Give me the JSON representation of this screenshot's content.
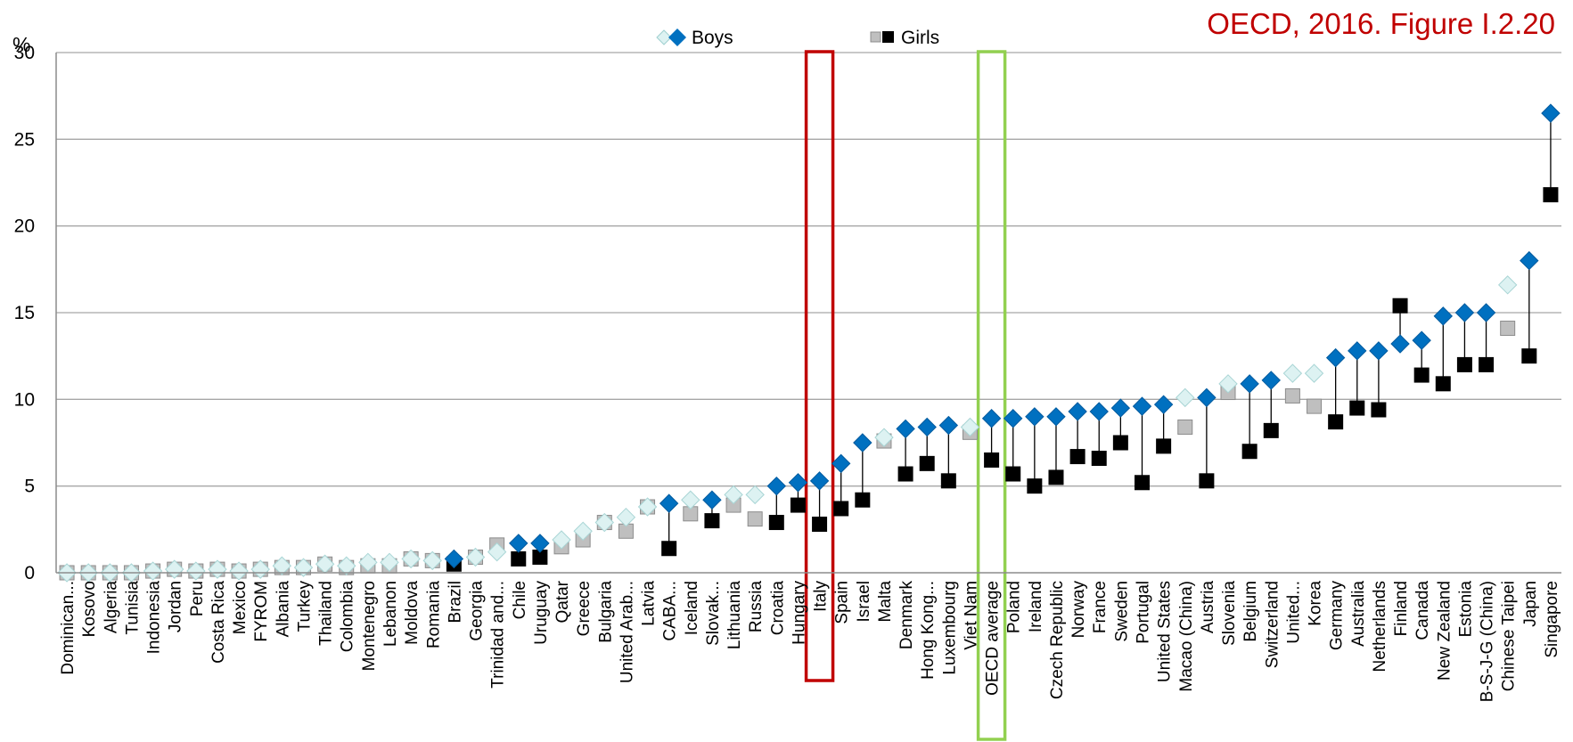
{
  "source_note": "OECD, 2016. Figure I.2.20",
  "colors": {
    "boys_significant": "#0070C0",
    "boys_not_significant": "#DDF2F2",
    "girls_significant": "#000000",
    "girls_not_significant": "#BFBFBF",
    "grid": "#A6A6A6",
    "highlight_italy": "#C00000",
    "highlight_oecd": "#92D050",
    "source_text": "#C00000"
  },
  "chart_data": {
    "type": "dot-range",
    "ylabel": "%",
    "ylim": [
      0,
      30
    ],
    "yticks": [
      0,
      5,
      10,
      15,
      20,
      25,
      30
    ],
    "grid": true,
    "legend": {
      "placement": "top-center",
      "entries": [
        "Boys",
        "Girls"
      ]
    },
    "highlighted_categories": [
      "Italy",
      "OECD average"
    ],
    "categories": [
      "Dominican...",
      "Kosovo",
      "Algeria",
      "Tunisia",
      "Indonesia",
      "Jordan",
      "Peru",
      "Costa Rica",
      "Mexico",
      "FYROM",
      "Albania",
      "Turkey",
      "Thailand",
      "Colombia",
      "Montenegro",
      "Lebanon",
      "Moldova",
      "Romania",
      "Brazil",
      "Georgia",
      "Trinidad and...",
      "Chile",
      "Uruguay",
      "Qatar",
      "Greece",
      "Bulgaria",
      "United Arab...",
      "Latvia",
      "CABA...",
      "Iceland",
      "Slovak...",
      "Lithuania",
      "Russia",
      "Croatia",
      "Hungary",
      "Italy",
      "Spain",
      "Israel",
      "Malta",
      "Denmark",
      "Hong Kong...",
      "Luxembourg",
      "Viet Nam",
      "OECD average",
      "Poland",
      "Ireland",
      "Czech Republic",
      "Norway",
      "France",
      "Sweden",
      "Portugal",
      "United States",
      "Macao (China)",
      "Austria",
      "Slovenia",
      "Belgium",
      "Switzerland",
      "United...",
      "Korea",
      "Germany",
      "Australia",
      "Netherlands",
      "Finland",
      "Canada",
      "New Zealand",
      "Estonia",
      "B-S-J-G (China)",
      "Chinese Taipei",
      "Japan",
      "Singapore"
    ],
    "series": [
      {
        "name": "Boys",
        "values": [
          0.0,
          0.0,
          0.0,
          0.0,
          0.1,
          0.2,
          0.1,
          0.2,
          0.1,
          0.2,
          0.4,
          0.3,
          0.5,
          0.4,
          0.6,
          0.6,
          0.8,
          0.7,
          0.8,
          0.9,
          1.2,
          1.7,
          1.7,
          1.9,
          2.4,
          2.9,
          3.2,
          3.8,
          4.0,
          4.2,
          4.2,
          4.5,
          4.5,
          5.0,
          5.2,
          5.3,
          6.3,
          7.5,
          7.8,
          8.3,
          8.4,
          8.5,
          8.4,
          8.9,
          8.9,
          9.0,
          9.0,
          9.3,
          9.3,
          9.5,
          9.6,
          9.7,
          10.1,
          10.1,
          10.9,
          10.9,
          11.1,
          11.5,
          11.5,
          12.4,
          12.8,
          12.8,
          13.2,
          13.4,
          14.8,
          15.0,
          15.0,
          16.6,
          18.0,
          26.5
        ],
        "significant": [
          false,
          false,
          false,
          false,
          false,
          false,
          false,
          false,
          false,
          false,
          false,
          false,
          false,
          false,
          false,
          false,
          false,
          false,
          true,
          false,
          false,
          true,
          true,
          false,
          false,
          false,
          false,
          false,
          true,
          false,
          true,
          false,
          false,
          true,
          true,
          true,
          true,
          true,
          false,
          true,
          true,
          true,
          false,
          true,
          true,
          true,
          true,
          true,
          true,
          true,
          true,
          true,
          false,
          true,
          false,
          true,
          true,
          false,
          false,
          true,
          true,
          true,
          true,
          true,
          true,
          true,
          true,
          false,
          true,
          true
        ]
      },
      {
        "name": "Girls",
        "values": [
          0.0,
          0.0,
          0.0,
          0.0,
          0.1,
          0.2,
          0.1,
          0.2,
          0.1,
          0.2,
          0.3,
          0.3,
          0.5,
          0.3,
          0.4,
          0.4,
          0.8,
          0.7,
          0.5,
          0.9,
          1.6,
          0.8,
          0.9,
          1.5,
          1.9,
          2.9,
          2.4,
          3.8,
          1.4,
          3.4,
          3.0,
          3.9,
          3.1,
          2.9,
          3.9,
          2.8,
          3.7,
          4.2,
          7.6,
          5.7,
          6.3,
          5.3,
          8.1,
          6.5,
          5.7,
          5.0,
          5.5,
          6.7,
          6.6,
          7.5,
          5.2,
          7.3,
          8.4,
          5.3,
          10.4,
          7.0,
          8.2,
          10.2,
          9.6,
          8.7,
          9.5,
          9.4,
          15.4,
          11.4,
          10.9,
          12.0,
          12.0,
          14.1,
          12.5,
          21.8
        ],
        "significant": [
          false,
          false,
          false,
          false,
          false,
          false,
          false,
          false,
          false,
          false,
          false,
          false,
          false,
          false,
          false,
          false,
          false,
          false,
          true,
          false,
          false,
          true,
          true,
          false,
          false,
          false,
          false,
          false,
          true,
          false,
          true,
          false,
          false,
          true,
          true,
          true,
          true,
          true,
          false,
          true,
          true,
          true,
          false,
          true,
          true,
          true,
          true,
          true,
          true,
          true,
          true,
          true,
          false,
          true,
          false,
          true,
          true,
          false,
          false,
          true,
          true,
          true,
          true,
          true,
          true,
          true,
          true,
          false,
          true,
          true
        ]
      }
    ]
  }
}
